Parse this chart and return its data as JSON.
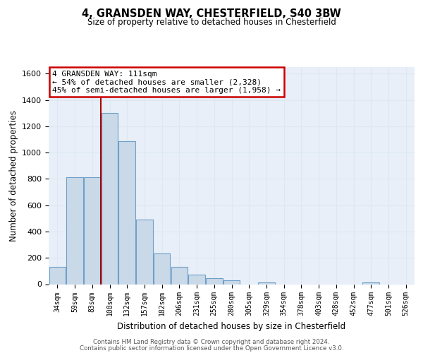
{
  "title": "4, GRANSDEN WAY, CHESTERFIELD, S40 3BW",
  "subtitle": "Size of property relative to detached houses in Chesterfield",
  "xlabel": "Distribution of detached houses by size in Chesterfield",
  "ylabel": "Number of detached properties",
  "categories": [
    "34sqm",
    "59sqm",
    "83sqm",
    "108sqm",
    "132sqm",
    "157sqm",
    "182sqm",
    "206sqm",
    "231sqm",
    "255sqm",
    "280sqm",
    "305sqm",
    "329sqm",
    "354sqm",
    "378sqm",
    "403sqm",
    "428sqm",
    "452sqm",
    "477sqm",
    "501sqm",
    "526sqm"
  ],
  "values": [
    130,
    812,
    812,
    1300,
    1085,
    490,
    235,
    133,
    70,
    44,
    28,
    0,
    15,
    0,
    0,
    0,
    0,
    0,
    15,
    0,
    0
  ],
  "bar_color": "#c9d9e8",
  "bar_edge_color": "#6fa0c8",
  "marker_bar_index": 2.5,
  "marker_label": "4 GRANSDEN WAY: 111sqm",
  "annotation_line1": "← 54% of detached houses are smaller (2,328)",
  "annotation_line2": "45% of semi-detached houses are larger (1,958) →",
  "annotation_box_color": "#ffffff",
  "annotation_box_edge": "#cc0000",
  "marker_line_color": "#aa0000",
  "ylim": [
    0,
    1650
  ],
  "yticks": [
    0,
    200,
    400,
    600,
    800,
    1000,
    1200,
    1400,
    1600
  ],
  "grid_color": "#dde8f0",
  "bg_color": "#e8eff8",
  "footer_line1": "Contains HM Land Registry data © Crown copyright and database right 2024.",
  "footer_line2": "Contains public sector information licensed under the Open Government Licence v3.0."
}
